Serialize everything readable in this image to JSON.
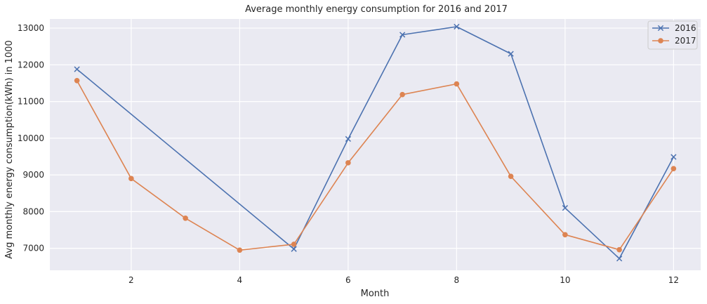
{
  "chart_data": {
    "type": "line",
    "title": "Average monthly energy consumption for 2016 and 2017",
    "xlabel": "Month",
    "ylabel": "Avg monthly energy consumption(kWh) in 1000",
    "xlim": [
      0.5,
      12.5
    ],
    "ylim": [
      6400,
      13250
    ],
    "xticks": [
      2,
      4,
      6,
      8,
      10,
      12
    ],
    "yticks": [
      7000,
      8000,
      9000,
      10000,
      11000,
      12000,
      13000
    ],
    "grid": true,
    "legend_position": "top-right",
    "background_color": "#eaeaf2",
    "series": [
      {
        "name": "2016",
        "color": "#4c72b0",
        "marker": "x",
        "x": [
          1,
          5,
          6,
          7,
          8,
          9,
          10,
          11,
          12
        ],
        "values": [
          11880,
          6980,
          9980,
          12820,
          13040,
          12300,
          8100,
          6720,
          9490
        ]
      },
      {
        "name": "2017",
        "color": "#dd8452",
        "marker": "o",
        "x": [
          1,
          2,
          3,
          4,
          5,
          6,
          7,
          8,
          9,
          10,
          11,
          12
        ],
        "values": [
          11570,
          8900,
          7820,
          6950,
          7110,
          9330,
          11190,
          11480,
          8960,
          7370,
          6960,
          9170
        ]
      }
    ]
  }
}
